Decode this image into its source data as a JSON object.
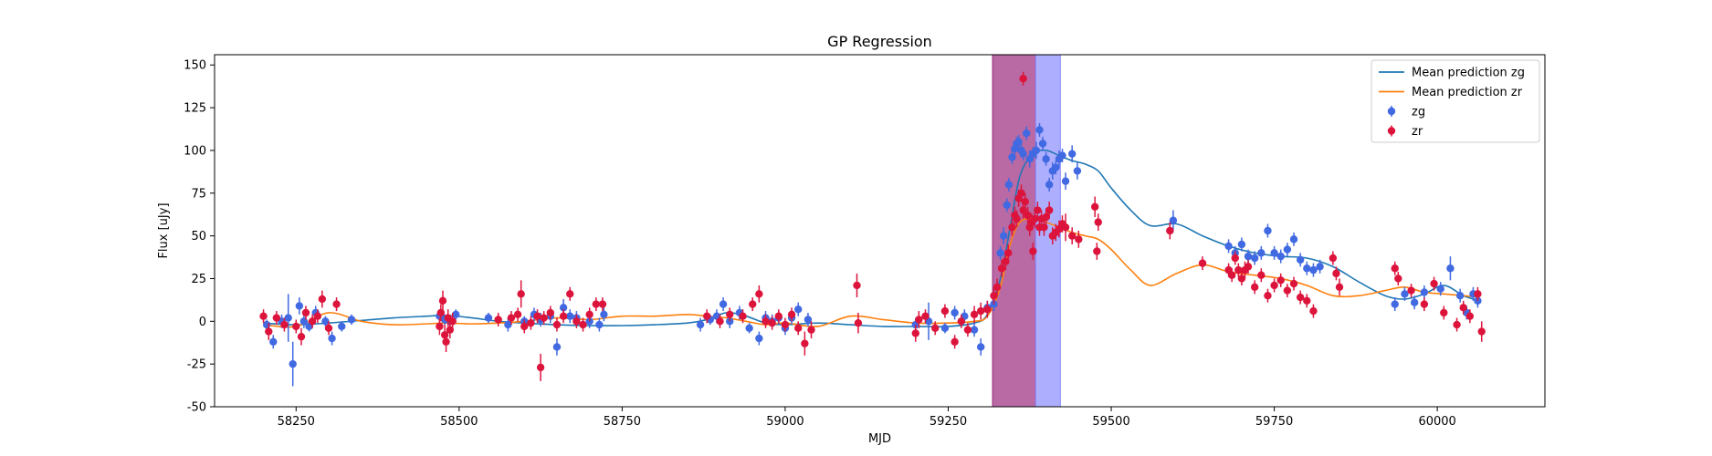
{
  "chart_data": {
    "type": "scatter",
    "title": "GP Regression",
    "xlabel": "MJD",
    "ylabel": "Flux [uJy]",
    "xlim": [
      58125,
      60165
    ],
    "ylim": [
      -50,
      156
    ],
    "xticks": [
      58250,
      58500,
      58750,
      59000,
      59250,
      59500,
      59750,
      60000
    ],
    "yticks": [
      -50,
      -25,
      0,
      25,
      50,
      75,
      100,
      125,
      150
    ],
    "grid": false,
    "legend_position": "top-right",
    "shaded_regions": [
      {
        "x0": 59318,
        "x1": 59384,
        "color": "#9b2a7d"
      },
      {
        "x0": 59384,
        "x1": 59422,
        "color": "#8c8cff"
      }
    ],
    "lines": [
      {
        "name": "Mean prediction zg",
        "color": "#1f77b4",
        "x": [
          58200,
          58250,
          58300,
          58350,
          58400,
          58450,
          58480,
          58520,
          58560,
          58600,
          58650,
          58700,
          58750,
          58800,
          58850,
          58880,
          58910,
          58940,
          58970,
          59000,
          59050,
          59100,
          59150,
          59200,
          59250,
          59290,
          59310,
          59330,
          59345,
          59360,
          59380,
          59400,
          59420,
          59440,
          59460,
          59480,
          59500,
          59530,
          59560,
          59600,
          59640,
          59680,
          59720,
          59760,
          59800,
          59840,
          59880,
          59920,
          59950,
          59980,
          60010,
          60040,
          60065
        ],
        "y": [
          -1,
          -2,
          -1,
          0.5,
          2,
          3,
          3.5,
          2,
          0,
          -1,
          -2,
          -2.5,
          -2.5,
          -2,
          -1,
          1,
          5,
          3,
          -1,
          -2,
          -1,
          -2,
          -3,
          -3,
          -3,
          -1,
          4,
          25,
          55,
          85,
          98,
          100,
          97,
          94,
          92,
          88,
          78,
          65,
          56,
          57,
          50,
          44,
          40,
          38,
          37,
          32,
          23,
          15,
          13,
          16,
          21,
          15,
          12
        ]
      },
      {
        "name": "Mean prediction zr",
        "color": "#ff7f0e",
        "x": [
          58200,
          58250,
          58300,
          58350,
          58400,
          58450,
          58480,
          58520,
          58560,
          58600,
          58650,
          58700,
          58750,
          58800,
          58850,
          58880,
          58910,
          58940,
          58970,
          59000,
          59050,
          59100,
          59150,
          59200,
          59250,
          59290,
          59310,
          59330,
          59345,
          59360,
          59380,
          59400,
          59420,
          59440,
          59460,
          59480,
          59500,
          59530,
          59560,
          59600,
          59640,
          59680,
          59720,
          59760,
          59800,
          59840,
          59880,
          59920,
          59950,
          59980,
          60010,
          60040,
          60065
        ],
        "y": [
          -2,
          -3,
          5,
          0,
          -2,
          -1.5,
          -1,
          -1.5,
          -1,
          0,
          2,
          1,
          3,
          3,
          4,
          3,
          2,
          0,
          -2,
          -1,
          -3,
          3,
          1,
          -1,
          -1,
          0,
          3,
          20,
          45,
          58,
          60,
          58,
          55,
          52,
          50,
          48,
          42,
          30,
          21,
          28,
          33,
          29,
          27,
          25,
          21,
          15,
          15,
          18,
          20,
          17,
          16,
          15,
          14
        ]
      }
    ],
    "series": [
      {
        "name": "zg",
        "color": "#4169e1",
        "x": [
          58205,
          58215,
          58228,
          58238,
          58245,
          58255,
          58262,
          58270,
          58280,
          58295,
          58305,
          58320,
          58335,
          58470,
          58478,
          58486,
          58495,
          58545,
          58575,
          58600,
          58615,
          58625,
          58640,
          58650,
          58660,
          58670,
          58680,
          58700,
          58715,
          58722,
          58870,
          58885,
          58895,
          58905,
          58915,
          58930,
          58945,
          58960,
          58970,
          58980,
          58990,
          59000,
          59010,
          59020,
          59035,
          59200,
          59220,
          59245,
          59260,
          59275,
          59290,
          59300,
          59310,
          59320,
          59330,
          59335,
          59340,
          59343,
          59348,
          59352,
          59355,
          59358,
          59362,
          59365,
          59370,
          59375,
          59380,
          59385,
          59390,
          59395,
          59400,
          59405,
          59410,
          59415,
          59420,
          59425,
          59430,
          59440,
          59448,
          59595,
          59680,
          59690,
          59700,
          59710,
          59720,
          59730,
          59740,
          59750,
          59760,
          59770,
          59780,
          59790,
          59800,
          59810,
          59820,
          59935,
          59950,
          59965,
          59980,
          60005,
          60020,
          60035,
          60045,
          60055,
          60062
        ],
        "y": [
          -2,
          -12,
          0,
          2,
          -25,
          9,
          0,
          -3,
          5,
          0,
          -10,
          -3,
          1,
          3,
          1,
          0,
          4,
          2,
          -2,
          0,
          4,
          1,
          3,
          -15,
          8,
          3,
          2,
          0,
          -2,
          4,
          -2,
          1,
          3,
          10,
          0,
          5,
          -4,
          -10,
          2,
          0,
          2,
          -4,
          2,
          7,
          1,
          -2,
          0,
          -4,
          5,
          3,
          -5,
          -15,
          8,
          10,
          40,
          50,
          68,
          80,
          96,
          101,
          104,
          105,
          100,
          98,
          110,
          95,
          98,
          100,
          112,
          104,
          95,
          80,
          88,
          90,
          95,
          97,
          82,
          98,
          88,
          59,
          44,
          40,
          45,
          38,
          37,
          40,
          53,
          40,
          38,
          42,
          48,
          36,
          31,
          30,
          32,
          10,
          16,
          11,
          17,
          19,
          31,
          15,
          5,
          16,
          12
        ],
        "yerr": [
          3,
          4,
          4,
          14,
          13,
          5,
          4,
          3,
          4,
          3,
          4,
          3,
          3,
          3,
          3,
          3,
          3,
          3,
          4,
          3,
          4,
          4,
          4,
          5,
          5,
          4,
          4,
          4,
          4,
          4,
          4,
          3,
          4,
          4,
          4,
          4,
          3,
          4,
          4,
          4,
          4,
          4,
          4,
          4,
          4,
          4,
          11,
          3,
          4,
          4,
          4,
          5,
          4,
          4,
          4,
          5,
          4,
          4,
          4,
          4,
          4,
          4,
          4,
          4,
          4,
          5,
          4,
          5,
          4,
          4,
          4,
          4,
          5,
          4,
          5,
          4,
          5,
          5,
          5,
          6,
          4,
          4,
          4,
          4,
          4,
          4,
          4,
          4,
          4,
          4,
          4,
          4,
          4,
          4,
          4,
          4,
          4,
          4,
          4,
          4,
          7,
          4,
          4,
          4,
          4
        ]
      },
      {
        "name": "zr",
        "color": "#dc143c",
        "x": [
          58200,
          58208,
          58220,
          58232,
          58250,
          58258,
          58265,
          58275,
          58283,
          58290,
          58300,
          58312,
          58470,
          58472,
          58475,
          58478,
          58480,
          58483,
          58486,
          58490,
          58560,
          58580,
          58590,
          58595,
          58600,
          58610,
          58620,
          58625,
          58630,
          58640,
          58650,
          58660,
          58670,
          58680,
          58690,
          58700,
          58710,
          58720,
          58880,
          58900,
          58915,
          58935,
          58950,
          58960,
          58970,
          58980,
          58990,
          59000,
          59010,
          59020,
          59030,
          59040,
          59110,
          59112,
          59200,
          59205,
          59215,
          59230,
          59245,
          59260,
          59270,
          59280,
          59290,
          59300,
          59310,
          59320,
          59325,
          59332,
          59338,
          59342,
          59348,
          59352,
          59355,
          59358,
          59362,
          59365,
          59368,
          59372,
          59375,
          59378,
          59380,
          59383,
          59387,
          59390,
          59393,
          59397,
          59400,
          59405,
          59410,
          59415,
          59420,
          59425,
          59430,
          59440,
          59450,
          59475,
          59478,
          59480,
          59590,
          59640,
          59680,
          59685,
          59690,
          59695,
          59700,
          59705,
          59710,
          59720,
          59730,
          59740,
          59750,
          59760,
          59770,
          59780,
          59790,
          59800,
          59810,
          59840,
          59845,
          59850,
          59935,
          59940,
          59960,
          59980,
          59995,
          60010,
          60030,
          60040,
          60050,
          60062,
          60068
        ],
        "y": [
          3,
          -6,
          2,
          -2,
          -3,
          -9,
          5,
          0,
          3,
          13,
          -4,
          10,
          -3,
          5,
          12,
          -8,
          -12,
          2,
          -5,
          0,
          1,
          2,
          4,
          16,
          -3,
          -1,
          3,
          -27,
          2,
          5,
          -2,
          3,
          16,
          0,
          -2,
          4,
          10,
          10,
          3,
          0,
          4,
          3,
          10,
          16,
          0,
          -1,
          3,
          -2,
          4,
          -4,
          -13,
          -5,
          21,
          -1,
          -7,
          1,
          3,
          -4,
          6,
          -12,
          0,
          -5,
          4,
          6,
          7,
          15,
          20,
          31,
          35,
          40,
          55,
          62,
          60,
          72,
          75,
          65,
          70,
          62,
          55,
          58,
          41,
          60,
          65,
          55,
          60,
          55,
          61,
          65,
          50,
          52,
          54,
          57,
          55,
          50,
          48,
          67,
          41,
          58,
          53,
          34,
          30,
          27,
          37,
          30,
          25,
          30,
          32,
          20,
          27,
          15,
          21,
          24,
          18,
          22,
          14,
          12,
          6,
          37,
          28,
          20,
          31,
          25,
          18,
          10,
          22,
          5,
          -2,
          8,
          3,
          16,
          -6
        ],
        "yerr": [
          4,
          5,
          4,
          4,
          4,
          5,
          4,
          4,
          4,
          5,
          4,
          4,
          5,
          5,
          6,
          6,
          6,
          5,
          5,
          5,
          4,
          4,
          4,
          8,
          4,
          4,
          4,
          8,
          4,
          4,
          4,
          4,
          4,
          4,
          4,
          4,
          4,
          4,
          4,
          4,
          4,
          4,
          4,
          5,
          4,
          4,
          4,
          4,
          4,
          4,
          7,
          5,
          7,
          6,
          5,
          5,
          4,
          4,
          4,
          4,
          4,
          4,
          5,
          5,
          5,
          5,
          5,
          5,
          5,
          5,
          5,
          5,
          5,
          5,
          5,
          5,
          5,
          5,
          5,
          5,
          5,
          5,
          5,
          5,
          5,
          5,
          5,
          5,
          5,
          5,
          5,
          5,
          8,
          5,
          5,
          6,
          5,
          5,
          5,
          4,
          4,
          4,
          4,
          4,
          4,
          5,
          4,
          4,
          4,
          4,
          4,
          4,
          4,
          4,
          4,
          4,
          4,
          4,
          4,
          5,
          4,
          4,
          4,
          4,
          4,
          4,
          4,
          4,
          4,
          4,
          6
        ]
      }
    ],
    "extra_points": [
      {
        "series": "zr",
        "x": 59365,
        "y": 142,
        "yerr": 4
      }
    ]
  }
}
